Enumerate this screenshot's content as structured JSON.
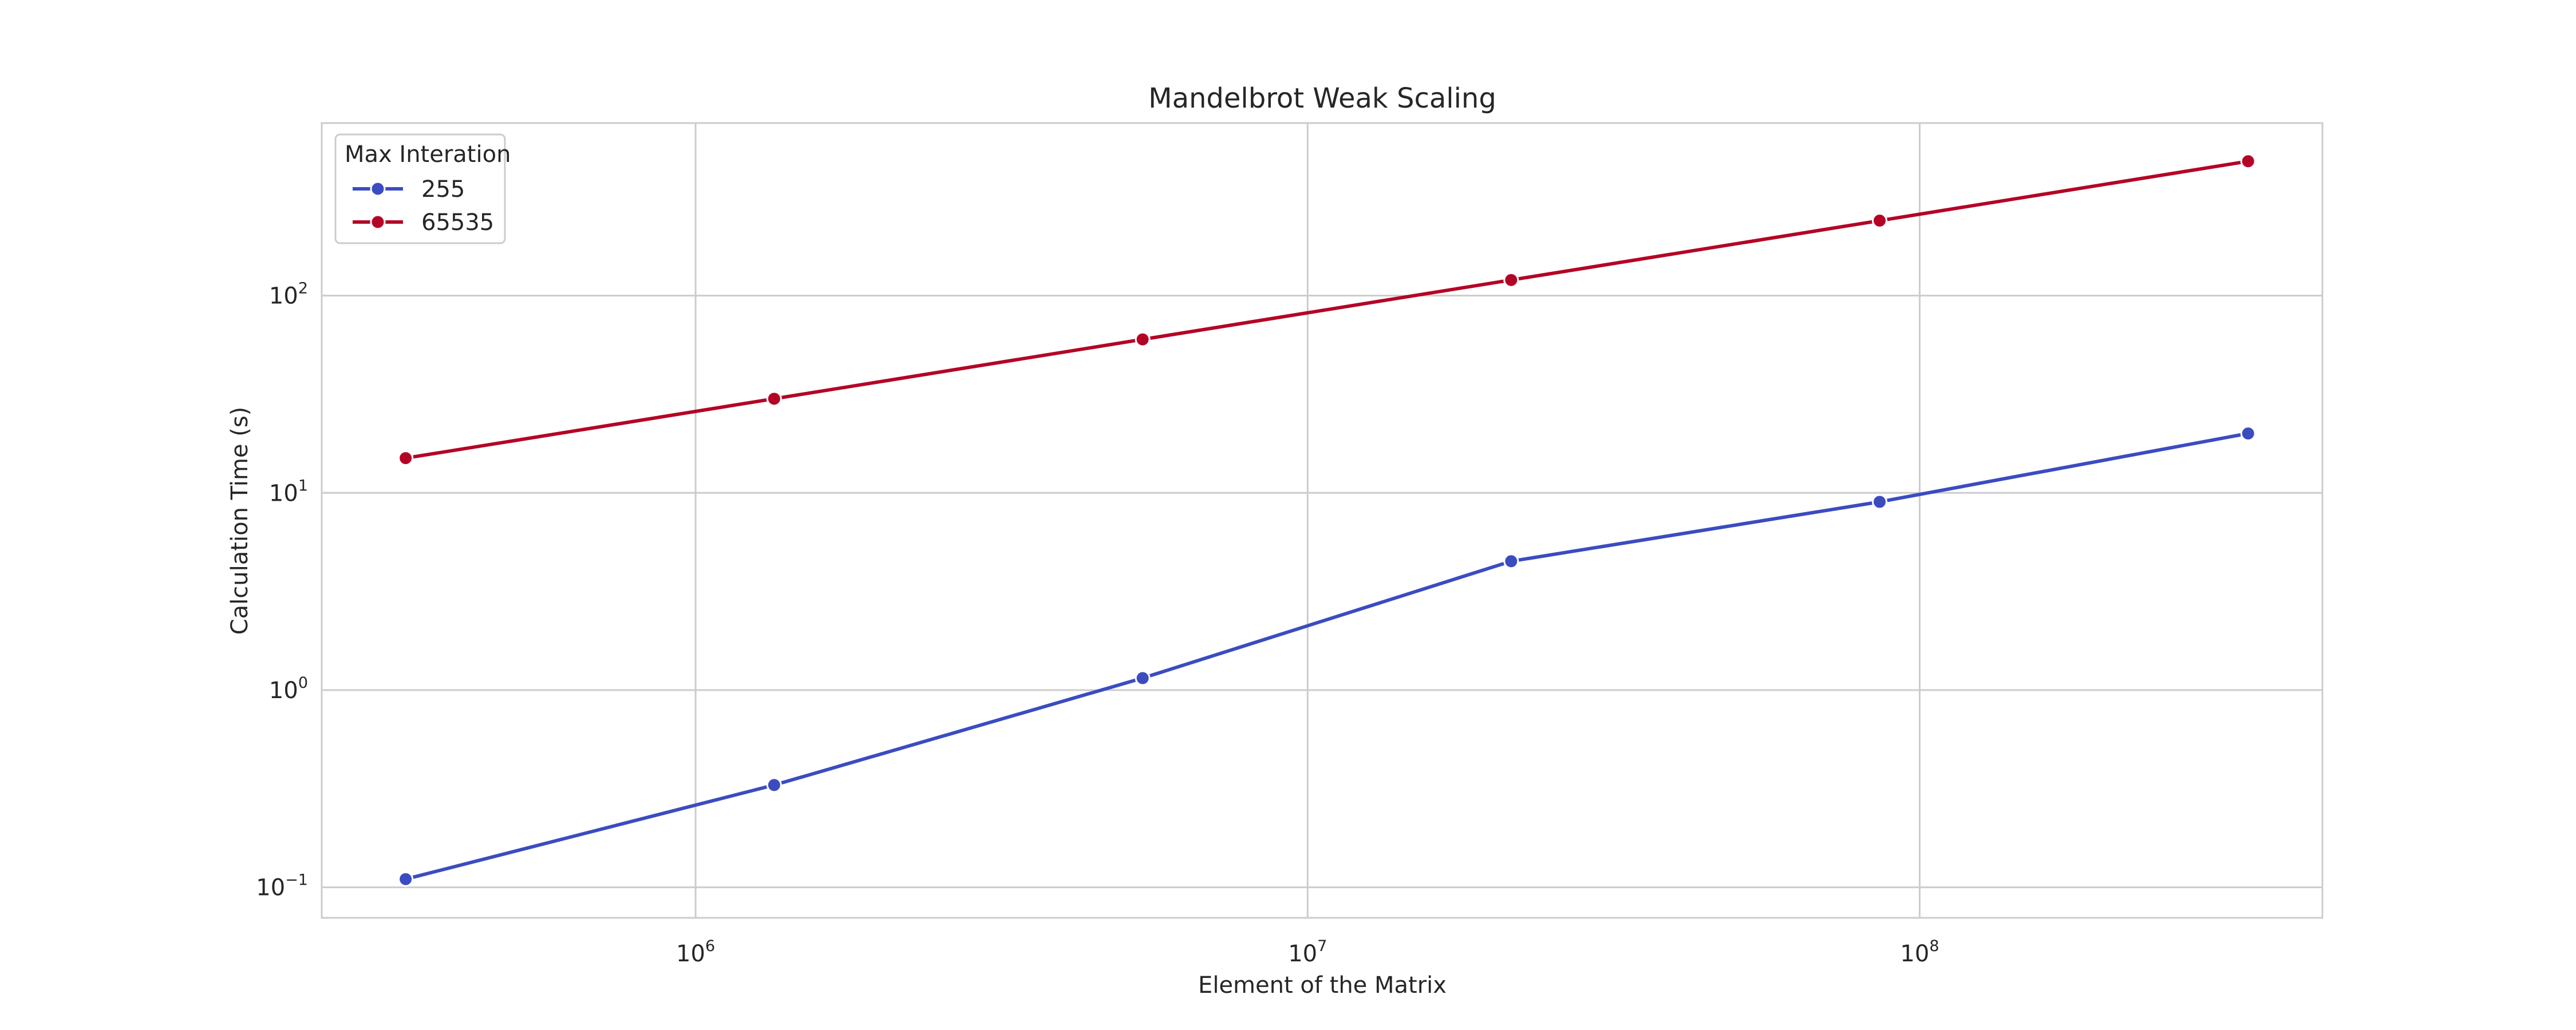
{
  "chart_data": {
    "type": "line",
    "title": "Mandelbrot Weak Scaling",
    "xlabel": "Element of the Matrix",
    "ylabel": "Calculation Time (s)",
    "xscale": "log",
    "yscale": "log",
    "xlim": [
      245000,
      455000000
    ],
    "ylim": [
      0.07,
      750
    ],
    "xticks": [
      {
        "base": "10",
        "exp": "6",
        "value": 1000000
      },
      {
        "base": "10",
        "exp": "7",
        "value": 10000000
      },
      {
        "base": "10",
        "exp": "8",
        "value": 100000000
      }
    ],
    "yticks": [
      {
        "base": "10",
        "exp": "−1",
        "value": 0.1
      },
      {
        "base": "10",
        "exp": "0",
        "value": 1
      },
      {
        "base": "10",
        "exp": "1",
        "value": 10
      },
      {
        "base": "10",
        "exp": "2",
        "value": 100
      }
    ],
    "grid": true,
    "legend": {
      "title": "Max Interation",
      "placement": "top-left"
    },
    "x": [
      336000,
      1344000,
      5376000,
      21504000,
      86016000,
      344064000
    ],
    "series": [
      {
        "name": "255",
        "color": "#3b4cc0",
        "values": [
          0.11,
          0.33,
          1.15,
          4.5,
          9.0,
          20.0
        ]
      },
      {
        "name": "65535",
        "color": "#b40426",
        "values": [
          15,
          30,
          60,
          120,
          240,
          480
        ]
      }
    ]
  }
}
